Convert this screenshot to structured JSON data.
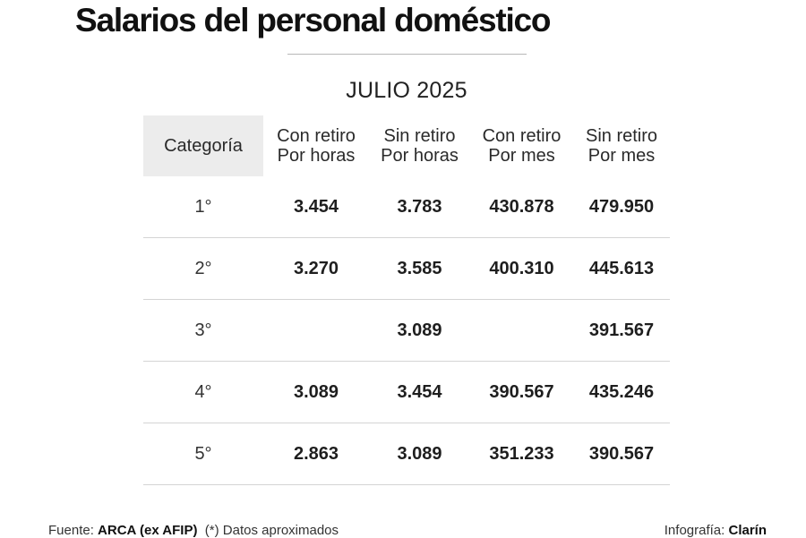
{
  "title": "Salarios del personal doméstico",
  "subtitle": "JULIO 2025",
  "table": {
    "headers": [
      {
        "line1": "Categoría",
        "line2": ""
      },
      {
        "line1": "Con retiro",
        "line2": "Por horas"
      },
      {
        "line1": "Sin retiro",
        "line2": "Por horas"
      },
      {
        "line1": "Con retiro",
        "line2": "Por mes"
      },
      {
        "line1": "Sin retiro",
        "line2": "Por mes"
      }
    ],
    "rows": [
      [
        "1°",
        "3.454",
        "3.783",
        "430.878",
        "479.950"
      ],
      [
        "2°",
        "3.270",
        "3.585",
        "400.310",
        "445.613"
      ],
      [
        "3°",
        "",
        "3.089",
        "",
        "391.567"
      ],
      [
        "4°",
        "3.089",
        "3.454",
        "390.567",
        "435.246"
      ],
      [
        "5°",
        "2.863",
        "3.089",
        "351.233",
        "390.567"
      ]
    ]
  },
  "footer": {
    "source_label": "Fuente:",
    "source_name": "ARCA (ex AFIP)",
    "note": "(*) Datos aproximados",
    "credit_label": "Infografía:",
    "credit_name": "Clarín"
  }
}
